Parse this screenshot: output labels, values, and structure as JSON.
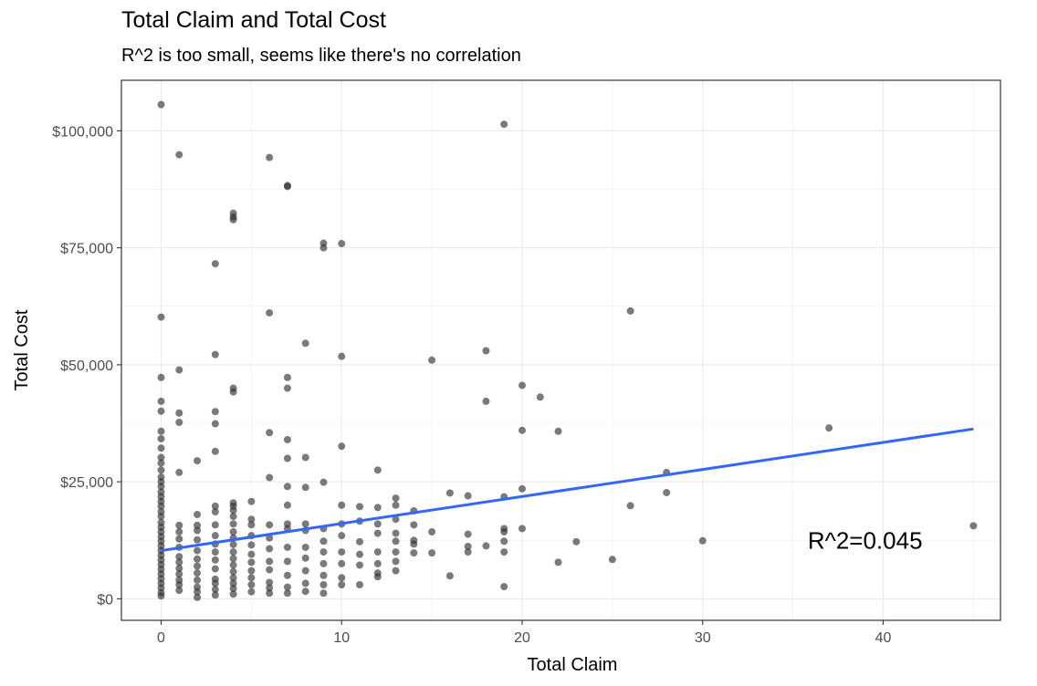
{
  "chart_data": {
    "type": "scatter",
    "title": "Total Claim and Total Cost",
    "subtitle": "R^2 is too small, seems like there's no correlation",
    "xlabel": "Total Claim",
    "ylabel": "Total Cost",
    "xlim": [
      -2.2,
      46.5
    ],
    "ylim": [
      -4600,
      110800
    ],
    "x_ticks": [
      0,
      10,
      20,
      30,
      40
    ],
    "x_tick_labels": [
      "0",
      "10",
      "20",
      "30",
      "40"
    ],
    "y_ticks": [
      0,
      25000,
      50000,
      75000,
      100000
    ],
    "y_tick_labels": [
      "$0",
      "$25,000",
      "$50,000",
      "$75,000",
      "$100,000"
    ],
    "grid": true,
    "point_color": "#333333",
    "line_color": "#3366FF",
    "annotation": {
      "text": "R^2=0.045",
      "x": 39,
      "y": 12500
    },
    "trend_line": {
      "x": [
        0,
        45
      ],
      "y": [
        10300,
        36300
      ]
    },
    "points": [
      [
        0,
        105600
      ],
      [
        0,
        60200
      ],
      [
        0,
        47300
      ],
      [
        0,
        42200
      ],
      [
        0,
        40100
      ],
      [
        0,
        35800
      ],
      [
        0,
        34200
      ],
      [
        0,
        32200
      ],
      [
        0,
        30200
      ],
      [
        0,
        29000
      ],
      [
        0,
        27500
      ],
      [
        0,
        26000
      ],
      [
        0,
        25000
      ],
      [
        0,
        24000
      ],
      [
        0,
        22800
      ],
      [
        0,
        21800
      ],
      [
        0,
        20800
      ],
      [
        0,
        19800
      ],
      [
        0,
        18600
      ],
      [
        0,
        17600
      ],
      [
        0,
        16300
      ],
      [
        0,
        15300
      ],
      [
        0,
        14300
      ],
      [
        0,
        13300
      ],
      [
        0,
        12300
      ],
      [
        0,
        11300
      ],
      [
        0,
        10300
      ],
      [
        0,
        9300
      ],
      [
        0,
        8300
      ],
      [
        0,
        7300
      ],
      [
        0,
        6300
      ],
      [
        0,
        5300
      ],
      [
        0,
        4300
      ],
      [
        0,
        3300
      ],
      [
        0,
        2300
      ],
      [
        0,
        1300
      ],
      [
        0,
        600
      ],
      [
        1,
        94900
      ],
      [
        1,
        48900
      ],
      [
        1,
        39700
      ],
      [
        1,
        37700
      ],
      [
        1,
        27000
      ],
      [
        1,
        15700
      ],
      [
        1,
        14300
      ],
      [
        1,
        12800
      ],
      [
        1,
        11000
      ],
      [
        1,
        9000
      ],
      [
        1,
        7800
      ],
      [
        1,
        6500
      ],
      [
        1,
        5300
      ],
      [
        1,
        4000
      ],
      [
        1,
        3000
      ],
      [
        1,
        1800
      ],
      [
        2,
        29500
      ],
      [
        2,
        18000
      ],
      [
        2,
        15700
      ],
      [
        2,
        14600
      ],
      [
        2,
        12600
      ],
      [
        2,
        10300
      ],
      [
        2,
        8500
      ],
      [
        2,
        7000
      ],
      [
        2,
        5500
      ],
      [
        2,
        4000
      ],
      [
        2,
        2500
      ],
      [
        2,
        1500
      ],
      [
        2,
        300
      ],
      [
        3,
        71600
      ],
      [
        3,
        52200
      ],
      [
        3,
        40000
      ],
      [
        3,
        37400
      ],
      [
        3,
        31500
      ],
      [
        3,
        19800
      ],
      [
        3,
        18600
      ],
      [
        3,
        15800
      ],
      [
        3,
        13500
      ],
      [
        3,
        11700
      ],
      [
        3,
        10000
      ],
      [
        3,
        8300
      ],
      [
        3,
        6400
      ],
      [
        3,
        4200
      ],
      [
        3,
        3300
      ],
      [
        3,
        2000
      ],
      [
        3,
        800
      ],
      [
        4,
        82400
      ],
      [
        4,
        81600
      ],
      [
        4,
        81000
      ],
      [
        4,
        45000
      ],
      [
        4,
        44200
      ],
      [
        4,
        20500
      ],
      [
        4,
        19800
      ],
      [
        4,
        18900
      ],
      [
        4,
        17600
      ],
      [
        4,
        16000
      ],
      [
        4,
        14300
      ],
      [
        4,
        13000
      ],
      [
        4,
        11600
      ],
      [
        4,
        10000
      ],
      [
        4,
        8600
      ],
      [
        4,
        7200
      ],
      [
        4,
        5800
      ],
      [
        4,
        4500
      ],
      [
        4,
        3300
      ],
      [
        4,
        2200
      ],
      [
        4,
        1000
      ],
      [
        5,
        20800
      ],
      [
        5,
        17000
      ],
      [
        5,
        15800
      ],
      [
        5,
        13500
      ],
      [
        5,
        11500
      ],
      [
        5,
        9500
      ],
      [
        5,
        7800
      ],
      [
        5,
        6000
      ],
      [
        5,
        4500
      ],
      [
        5,
        3000
      ],
      [
        5,
        1500
      ],
      [
        6,
        94300
      ],
      [
        6,
        61100
      ],
      [
        6,
        35500
      ],
      [
        6,
        25900
      ],
      [
        6,
        15800
      ],
      [
        6,
        13000
      ],
      [
        6,
        10700
      ],
      [
        6,
        8000
      ],
      [
        6,
        6200
      ],
      [
        6,
        3500
      ],
      [
        6,
        2300
      ],
      [
        6,
        1200
      ],
      [
        7,
        88300
      ],
      [
        7,
        88100
      ],
      [
        7,
        47300
      ],
      [
        7,
        45000
      ],
      [
        7,
        34000
      ],
      [
        7,
        30000
      ],
      [
        7,
        24000
      ],
      [
        7,
        20000
      ],
      [
        7,
        16000
      ],
      [
        7,
        15000
      ],
      [
        7,
        11000
      ],
      [
        7,
        8000
      ],
      [
        7,
        5000
      ],
      [
        7,
        2500
      ],
      [
        7,
        1200
      ],
      [
        8,
        54600
      ],
      [
        8,
        30200
      ],
      [
        8,
        23800
      ],
      [
        8,
        16000
      ],
      [
        8,
        14600
      ],
      [
        8,
        11000
      ],
      [
        8,
        8700
      ],
      [
        8,
        6000
      ],
      [
        8,
        3300
      ],
      [
        8,
        1600
      ],
      [
        9,
        76000
      ],
      [
        9,
        75000
      ],
      [
        9,
        24900
      ],
      [
        9,
        15000
      ],
      [
        9,
        12300
      ],
      [
        9,
        10000
      ],
      [
        9,
        7500
      ],
      [
        9,
        5000
      ],
      [
        9,
        3000
      ],
      [
        9,
        1200
      ],
      [
        10,
        75900
      ],
      [
        10,
        51800
      ],
      [
        10,
        32600
      ],
      [
        10,
        20000
      ],
      [
        10,
        16000
      ],
      [
        10,
        13500
      ],
      [
        10,
        10000
      ],
      [
        10,
        7500
      ],
      [
        10,
        4500
      ],
      [
        10,
        3000
      ],
      [
        11,
        19700
      ],
      [
        11,
        16600
      ],
      [
        11,
        12200
      ],
      [
        11,
        9500
      ],
      [
        11,
        7200
      ],
      [
        11,
        3000
      ],
      [
        12,
        27500
      ],
      [
        12,
        19500
      ],
      [
        12,
        16000
      ],
      [
        12,
        14000
      ],
      [
        12,
        10000
      ],
      [
        12,
        7500
      ],
      [
        12,
        5500
      ],
      [
        12,
        4700
      ],
      [
        13,
        21500
      ],
      [
        13,
        20000
      ],
      [
        13,
        17000
      ],
      [
        13,
        14000
      ],
      [
        13,
        12300
      ],
      [
        13,
        10000
      ],
      [
        13,
        8000
      ],
      [
        13,
        6000
      ],
      [
        14,
        18800
      ],
      [
        14,
        15800
      ],
      [
        14,
        12500
      ],
      [
        14,
        11700
      ],
      [
        14,
        9800
      ],
      [
        15,
        51000
      ],
      [
        15,
        14300
      ],
      [
        15,
        9800
      ],
      [
        16,
        22600
      ],
      [
        16,
        4900
      ],
      [
        17,
        22000
      ],
      [
        17,
        13800
      ],
      [
        17,
        11200
      ],
      [
        17,
        10000
      ],
      [
        18,
        53000
      ],
      [
        18,
        42200
      ],
      [
        18,
        11300
      ],
      [
        19,
        101400
      ],
      [
        19,
        21800
      ],
      [
        19,
        15000
      ],
      [
        19,
        14300
      ],
      [
        19,
        12300
      ],
      [
        19,
        10000
      ],
      [
        19,
        2600
      ],
      [
        20,
        45600
      ],
      [
        20,
        36000
      ],
      [
        20,
        23500
      ],
      [
        20,
        15000
      ],
      [
        21,
        43100
      ],
      [
        22,
        35800
      ],
      [
        22,
        7800
      ],
      [
        23,
        12200
      ],
      [
        25,
        8400
      ],
      [
        26,
        61500
      ],
      [
        26,
        19900
      ],
      [
        28,
        27000
      ],
      [
        28,
        22700
      ],
      [
        30,
        12400
      ],
      [
        37,
        36500
      ],
      [
        45,
        15600
      ]
    ]
  }
}
